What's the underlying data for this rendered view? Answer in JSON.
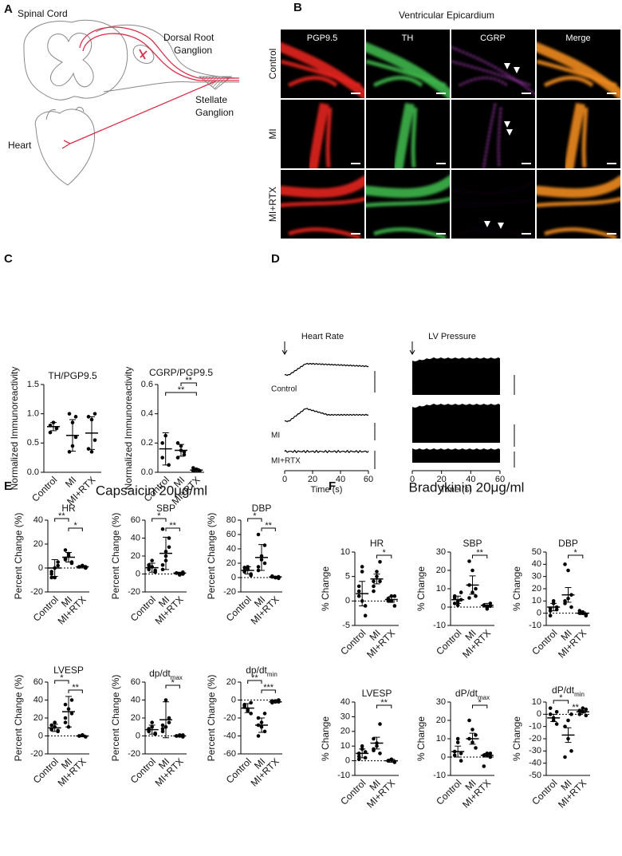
{
  "panel_a": {
    "letter": "A",
    "spinal_cord": "Spinal Cord",
    "dorsal_root_ganglion": [
      "Dorsal Root",
      "Ganglion"
    ],
    "stellate_ganglion": [
      "Stellate",
      "Ganglion"
    ],
    "heart": "Heart"
  },
  "panel_b": {
    "letter": "B",
    "title": "Ventricular Epicardium",
    "columns": [
      "PGP9.5",
      "TH",
      "CGRP",
      "Merge"
    ],
    "rows": [
      "Control",
      "MI",
      "MI+RTX"
    ]
  },
  "panel_c": {
    "letter": "C"
  },
  "panel_d": {
    "letter": "D",
    "charts": [
      {
        "title": "Heart Rate",
        "rows": [
          "Control",
          "MI",
          "MI+RTX"
        ],
        "xlabel": "Time (s)",
        "xlim": [
          0,
          60
        ],
        "xticks": [
          0,
          20,
          40,
          60
        ]
      },
      {
        "title": "LV Pressure",
        "xlabel": "Time (s)",
        "xlim": [
          0,
          60
        ],
        "xticks": [
          0,
          20,
          40,
          60
        ]
      }
    ]
  },
  "panel_e": {
    "letter": "E",
    "title": "Capsaicin 20μg/ml"
  },
  "panel_f": {
    "letter": "F",
    "title": "Bradykinin 20μg/ml"
  },
  "chart_data": [
    {
      "type": "dotplot",
      "title": "TH/PGP9.5",
      "ylabel": "Normalized Immunoreactivity",
      "categories": [
        "Control",
        "MI",
        "MI+RTX"
      ],
      "points": [
        [
          0.8,
          0.85,
          0.75,
          0.68
        ],
        [
          1.0,
          0.85,
          0.6,
          0.35,
          0.45,
          0.95
        ],
        [
          0.95,
          0.9,
          0.55,
          0.4,
          0.35,
          1.0
        ]
      ],
      "means": [
        0.78,
        0.63,
        0.67
      ],
      "errors": [
        0.07,
        0.27,
        0.28
      ],
      "ylim": [
        0,
        1.5
      ],
      "yticks": [
        {
          "value": 0,
          "label": "0.0"
        },
        0.5,
        {
          "value": 1,
          "label": "1.0"
        },
        1.5
      ],
      "significance": []
    },
    {
      "type": "dotplot",
      "title": "CGRP/PGP9.5",
      "ylabel": "Normalized Immunoreactivity",
      "categories": [
        "Control",
        "MI",
        "MI+RTX"
      ],
      "points": [
        [
          0.2,
          0.25,
          0.05,
          0.1
        ],
        [
          0.2,
          0.15,
          0.12,
          0.1,
          0.18,
          0.14
        ],
        [
          0.01,
          0.02,
          0.01,
          0.03,
          0.02,
          0.01
        ]
      ],
      "means": [
        0.16,
        0.15,
        0.015
      ],
      "errors": [
        0.11,
        0.04,
        0.01
      ],
      "ylim": [
        0,
        0.6
      ],
      "yticks": [
        {
          "value": 0,
          "label": "0.0"
        },
        0.2,
        0.4,
        0.6
      ],
      "significance": [
        {
          "pair": [
            1,
            2
          ],
          "label": "**"
        },
        {
          "pair": [
            0,
            2
          ],
          "label": "**"
        }
      ]
    },
    {
      "type": "dotplot",
      "title": "HR",
      "ylabel": "Percent Change (%)",
      "categories": [
        "Control",
        "MI",
        "MI+RTX"
      ],
      "points": [
        [
          -5,
          0,
          2,
          -8,
          -8,
          5,
          -3
        ],
        [
          8,
          12,
          5,
          15,
          10,
          4,
          7
        ],
        [
          1,
          2,
          0,
          1,
          2,
          1
        ]
      ],
      "means": [
        0,
        9,
        1
      ],
      "errors": [
        7,
        4,
        1
      ],
      "ylim": [
        -20,
        40
      ],
      "yticks": [
        -20,
        0,
        20,
        40
      ],
      "significance": [
        {
          "pair": [
            0,
            1
          ],
          "label": "**"
        },
        {
          "pair": [
            1,
            2
          ],
          "label": "*"
        }
      ]
    },
    {
      "type": "dotplot",
      "title": "SBP",
      "ylabel": "Percent Change (%)",
      "categories": [
        "Control",
        "MI",
        "MI+RTX"
      ],
      "points": [
        [
          5,
          8,
          2,
          10,
          15,
          4,
          7
        ],
        [
          5,
          15,
          30,
          50,
          25,
          40,
          10,
          20
        ],
        [
          1,
          0,
          2,
          1,
          -1,
          0
        ]
      ],
      "means": [
        7,
        23,
        1
      ],
      "errors": [
        5,
        18,
        1
      ],
      "ylim": [
        -20,
        60
      ],
      "yticks": [
        -20,
        0,
        20,
        40,
        60
      ],
      "significance": [
        {
          "pair": [
            0,
            1
          ],
          "label": "*"
        },
        {
          "pair": [
            1,
            2
          ],
          "label": "**"
        }
      ]
    },
    {
      "type": "dotplot",
      "title": "DBP",
      "ylabel": "Percent Change (%)",
      "categories": [
        "Control",
        "MI",
        "MI+RTX"
      ],
      "points": [
        [
          10,
          15,
          5,
          8,
          12,
          3,
          14
        ],
        [
          10,
          30,
          45,
          60,
          25,
          20,
          15
        ],
        [
          1,
          0,
          -1,
          2,
          0,
          1
        ]
      ],
      "means": [
        10,
        28,
        1
      ],
      "errors": [
        5,
        18,
        1
      ],
      "ylim": [
        -20,
        80
      ],
      "yticks": [
        -20,
        0,
        20,
        40,
        60,
        80
      ],
      "significance": [
        {
          "pair": [
            0,
            1
          ],
          "label": "*"
        },
        {
          "pair": [
            1,
            2
          ],
          "label": "**"
        }
      ]
    },
    {
      "type": "dotplot",
      "title": "LVESP",
      "ylabel": "Percent Change (%)",
      "categories": [
        "Control",
        "MI",
        "MI+RTX"
      ],
      "points": [
        [
          8,
          10,
          5,
          12,
          15,
          6,
          7
        ],
        [
          20,
          30,
          40,
          15,
          10,
          25,
          35
        ],
        [
          0,
          1,
          -1,
          0,
          1
        ]
      ],
      "means": [
        9,
        27,
        0
      ],
      "errors": [
        4,
        17,
        1
      ],
      "ylim": [
        -20,
        60
      ],
      "yticks": [
        -20,
        0,
        20,
        40,
        60
      ],
      "significance": [
        {
          "pair": [
            0,
            1
          ],
          "label": "*"
        },
        {
          "pair": [
            1,
            2
          ],
          "label": "**"
        }
      ]
    },
    {
      "type": "dotplot",
      "title": "dp/dt",
      "title_sub": "max",
      "ylabel": "Percent Change (%)",
      "categories": [
        "Control",
        "MI",
        "MI+RTX"
      ],
      "points": [
        [
          5,
          10,
          2,
          8,
          15,
          3,
          6
        ],
        [
          5,
          40,
          20,
          8,
          10,
          15,
          12
        ],
        [
          0,
          1,
          -1,
          0,
          0,
          1
        ]
      ],
      "means": [
        7,
        18,
        0
      ],
      "errors": [
        5,
        20,
        1
      ],
      "ylim": [
        -20,
        60
      ],
      "yticks": [
        -20,
        0,
        20,
        40,
        60
      ],
      "significance": [
        {
          "pair": [
            1,
            2
          ],
          "label": "*"
        }
      ]
    },
    {
      "type": "dotplot",
      "title": "dp/dt",
      "title_sub": "min",
      "ylabel": "Percent Change (%)",
      "categories": [
        "Control",
        "MI",
        "MI+RTX"
      ],
      "points": [
        [
          -5,
          -10,
          -15,
          -8,
          -12,
          -3,
          -6
        ],
        [
          -20,
          -30,
          -35,
          -40,
          -25,
          -15,
          -28
        ],
        [
          -1,
          -2,
          0,
          -3,
          -1,
          -2
        ]
      ],
      "means": [
        -9,
        -28,
        -2
      ],
      "errors": [
        5,
        8,
        1
      ],
      "ylim": [
        -60,
        20
      ],
      "yticks": [
        -60,
        -40,
        -20,
        0,
        20
      ],
      "significance": [
        {
          "pair": [
            0,
            1
          ],
          "label": "**"
        },
        {
          "pair": [
            1,
            2
          ],
          "label": "***"
        }
      ]
    },
    {
      "type": "dotplot",
      "title": "HR",
      "ylabel": "% Change",
      "categories": [
        "Control",
        "MI",
        "MI+RTX"
      ],
      "points": [
        [
          1,
          6,
          -3,
          3,
          0,
          -1,
          2,
          7
        ],
        [
          4,
          5,
          8,
          3,
          6,
          4,
          2
        ],
        [
          0,
          1,
          -1,
          0.5,
          0,
          1
        ]
      ],
      "means": [
        1.5,
        4.5,
        0.3
      ],
      "errors": [
        2.5,
        1,
        0.6
      ],
      "ylim": [
        -5,
        10
      ],
      "yticks": [
        -5,
        0,
        5,
        10
      ],
      "significance": [
        {
          "pair": [
            1,
            2
          ],
          "label": "*"
        }
      ]
    },
    {
      "type": "dotplot",
      "title": "SBP",
      "ylabel": "% Change",
      "categories": [
        "Control",
        "MI",
        "MI+RTX"
      ],
      "points": [
        [
          5,
          3,
          8,
          2,
          1,
          4,
          6
        ],
        [
          25,
          20,
          10,
          5,
          8,
          6,
          12
        ],
        [
          1,
          0,
          2,
          1,
          -1,
          0.5
        ]
      ],
      "means": [
        4,
        12,
        1
      ],
      "errors": [
        2,
        5,
        1
      ],
      "ylim": [
        -10,
        30
      ],
      "yticks": [
        -10,
        0,
        10,
        20,
        30
      ],
      "significance": [
        {
          "pair": [
            1,
            2
          ],
          "label": "**"
        }
      ]
    },
    {
      "type": "dotplot",
      "title": "DBP",
      "ylabel": "% Change",
      "categories": [
        "Control",
        "MI",
        "MI+RTX"
      ],
      "points": [
        [
          2,
          8,
          5,
          -2,
          10,
          3,
          4
        ],
        [
          40,
          35,
          15,
          8,
          12,
          5,
          10
        ],
        [
          0,
          1,
          -1,
          2,
          0,
          -2
        ]
      ],
      "means": [
        5,
        15,
        0
      ],
      "errors": [
        3,
        6,
        1
      ],
      "ylim": [
        -10,
        50
      ],
      "yticks": [
        -10,
        0,
        10,
        20,
        30,
        40,
        50
      ],
      "significance": [
        {
          "pair": [
            1,
            2
          ],
          "label": "*"
        }
      ]
    },
    {
      "type": "dotplot",
      "title": "LVESP",
      "ylabel": "% Change",
      "categories": [
        "Control",
        "MI",
        "MI+RTX"
      ],
      "points": [
        [
          5,
          8,
          2,
          3,
          10,
          6,
          1
        ],
        [
          15,
          10,
          25,
          8,
          12,
          5,
          7
        ],
        [
          0,
          1,
          -1,
          0,
          0.5,
          -0.5
        ]
      ],
      "means": [
        5,
        12,
        0
      ],
      "errors": [
        3,
        4,
        1
      ],
      "ylim": [
        -10,
        40
      ],
      "yticks": [
        -10,
        0,
        10,
        20,
        30,
        40
      ],
      "significance": [
        {
          "pair": [
            1,
            2
          ],
          "label": "**"
        }
      ]
    },
    {
      "type": "dotplot",
      "title": "dP/dt",
      "title_sub": "max",
      "ylabel": "% Change",
      "categories": [
        "Control",
        "MI",
        "MI+RTX"
      ],
      "points": [
        [
          3,
          8,
          -2,
          1,
          10,
          2
        ],
        [
          10,
          15,
          5,
          20,
          8,
          12
        ],
        [
          1,
          2,
          0,
          -5,
          1,
          2
        ]
      ],
      "means": [
        3,
        10,
        1
      ],
      "errors": [
        3,
        3,
        1
      ],
      "ylim": [
        -10,
        30
      ],
      "yticks": [
        -10,
        0,
        10,
        20,
        30
      ],
      "significance": [
        {
          "pair": [
            1,
            2
          ],
          "label": "*"
        }
      ]
    },
    {
      "type": "dotplot",
      "title": "dP/dt",
      "title_sub": "min",
      "ylabel": "% Change",
      "categories": [
        "Control",
        "MI",
        "MI+RTX"
      ],
      "points": [
        [
          0,
          -5,
          -8,
          5,
          -3,
          2
        ],
        [
          -10,
          -20,
          -30,
          -35,
          -5,
          0
        ],
        [
          0,
          2,
          4,
          3,
          5,
          -1
        ]
      ],
      "means": [
        -3,
        -17,
        2
      ],
      "errors": [
        3,
        6,
        1
      ],
      "ylim": [
        -50,
        10
      ],
      "yticks": [
        -50,
        -40,
        -30,
        -20,
        -10,
        0,
        10
      ],
      "significance": [
        {
          "pair": [
            0,
            1
          ],
          "label": "*"
        },
        {
          "pair": [
            1,
            2
          ],
          "label": "**"
        }
      ]
    }
  ]
}
